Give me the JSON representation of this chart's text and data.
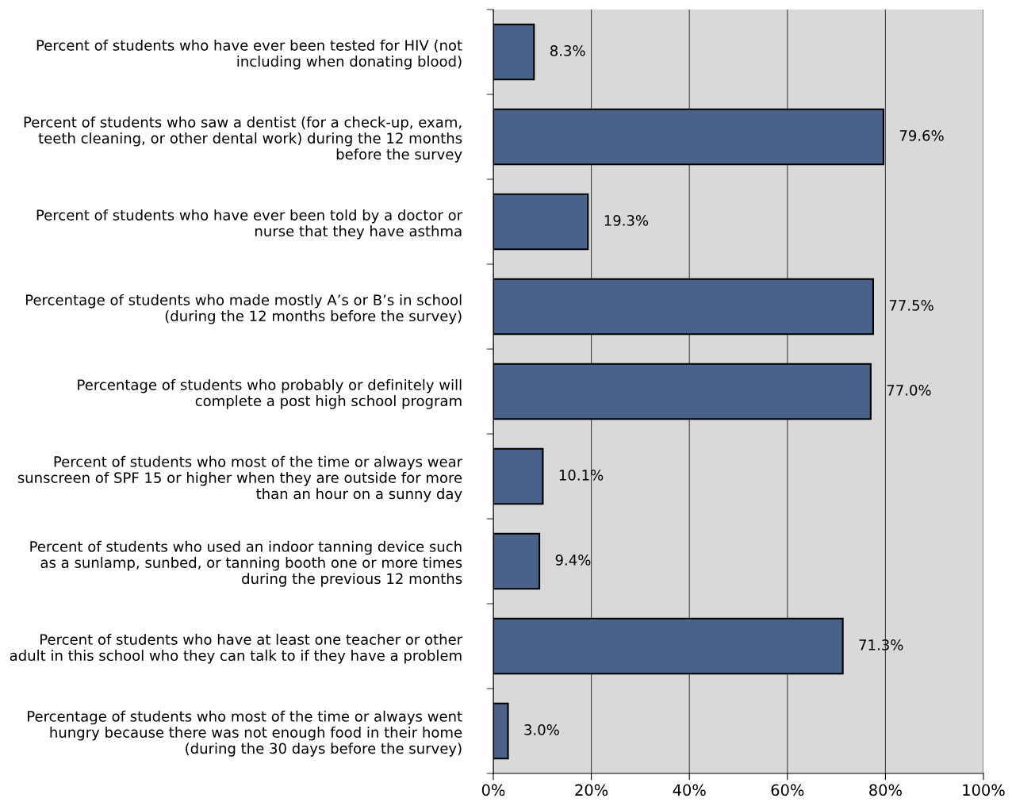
{
  "chart_data": {
    "type": "bar",
    "orientation": "horizontal",
    "categories": [
      "Percent of students who have ever been tested for HIV (not\nincluding when donating blood)",
      "Percent of students who saw a dentist (for a check-up, exam,\nteeth cleaning, or other dental work) during the 12 months\nbefore the survey",
      "Percent of students who have ever been told by a doctor or\nnurse that they have asthma",
      "Percentage of students who made mostly A’s or B’s in school\n(during the 12 months before the survey)",
      "Percentage of students who probably or definitely will\ncomplete a post high school program",
      "Percent of students who most of the time or always wear\nsunscreen of SPF 15 or higher when they are outside for more\nthan an hour on a sunny day",
      "Percent of students who used an indoor tanning device such\nas a sunlamp, sunbed, or tanning booth one or more times\nduring the previous 12 months",
      "Percent of students who have at least one teacher or other\nadult in this school who they can talk to if they have a problem",
      "Percentage of students who most of the time or always went\nhungry because there was not enough food in their home\n(during the 30 days before the survey)"
    ],
    "values": [
      8.3,
      79.6,
      19.3,
      77.5,
      77.0,
      10.1,
      9.4,
      71.3,
      3.0
    ],
    "value_labels": [
      "8.3%",
      "79.6%",
      "19.3%",
      "77.5%",
      "77.0%",
      "10.1%",
      "9.4%",
      "71.3%",
      "3.0%"
    ],
    "color": "#4a6189",
    "xlim": [
      0,
      100
    ],
    "xticks": [
      {
        "value": 0,
        "label": "0%"
      },
      {
        "value": 20,
        "label": "20%"
      },
      {
        "value": 40,
        "label": "40%"
      },
      {
        "value": 60,
        "label": "60%"
      },
      {
        "value": 80,
        "label": "80%"
      },
      {
        "value": 100,
        "label": "100%"
      }
    ],
    "grid": "x",
    "legend": false
  }
}
